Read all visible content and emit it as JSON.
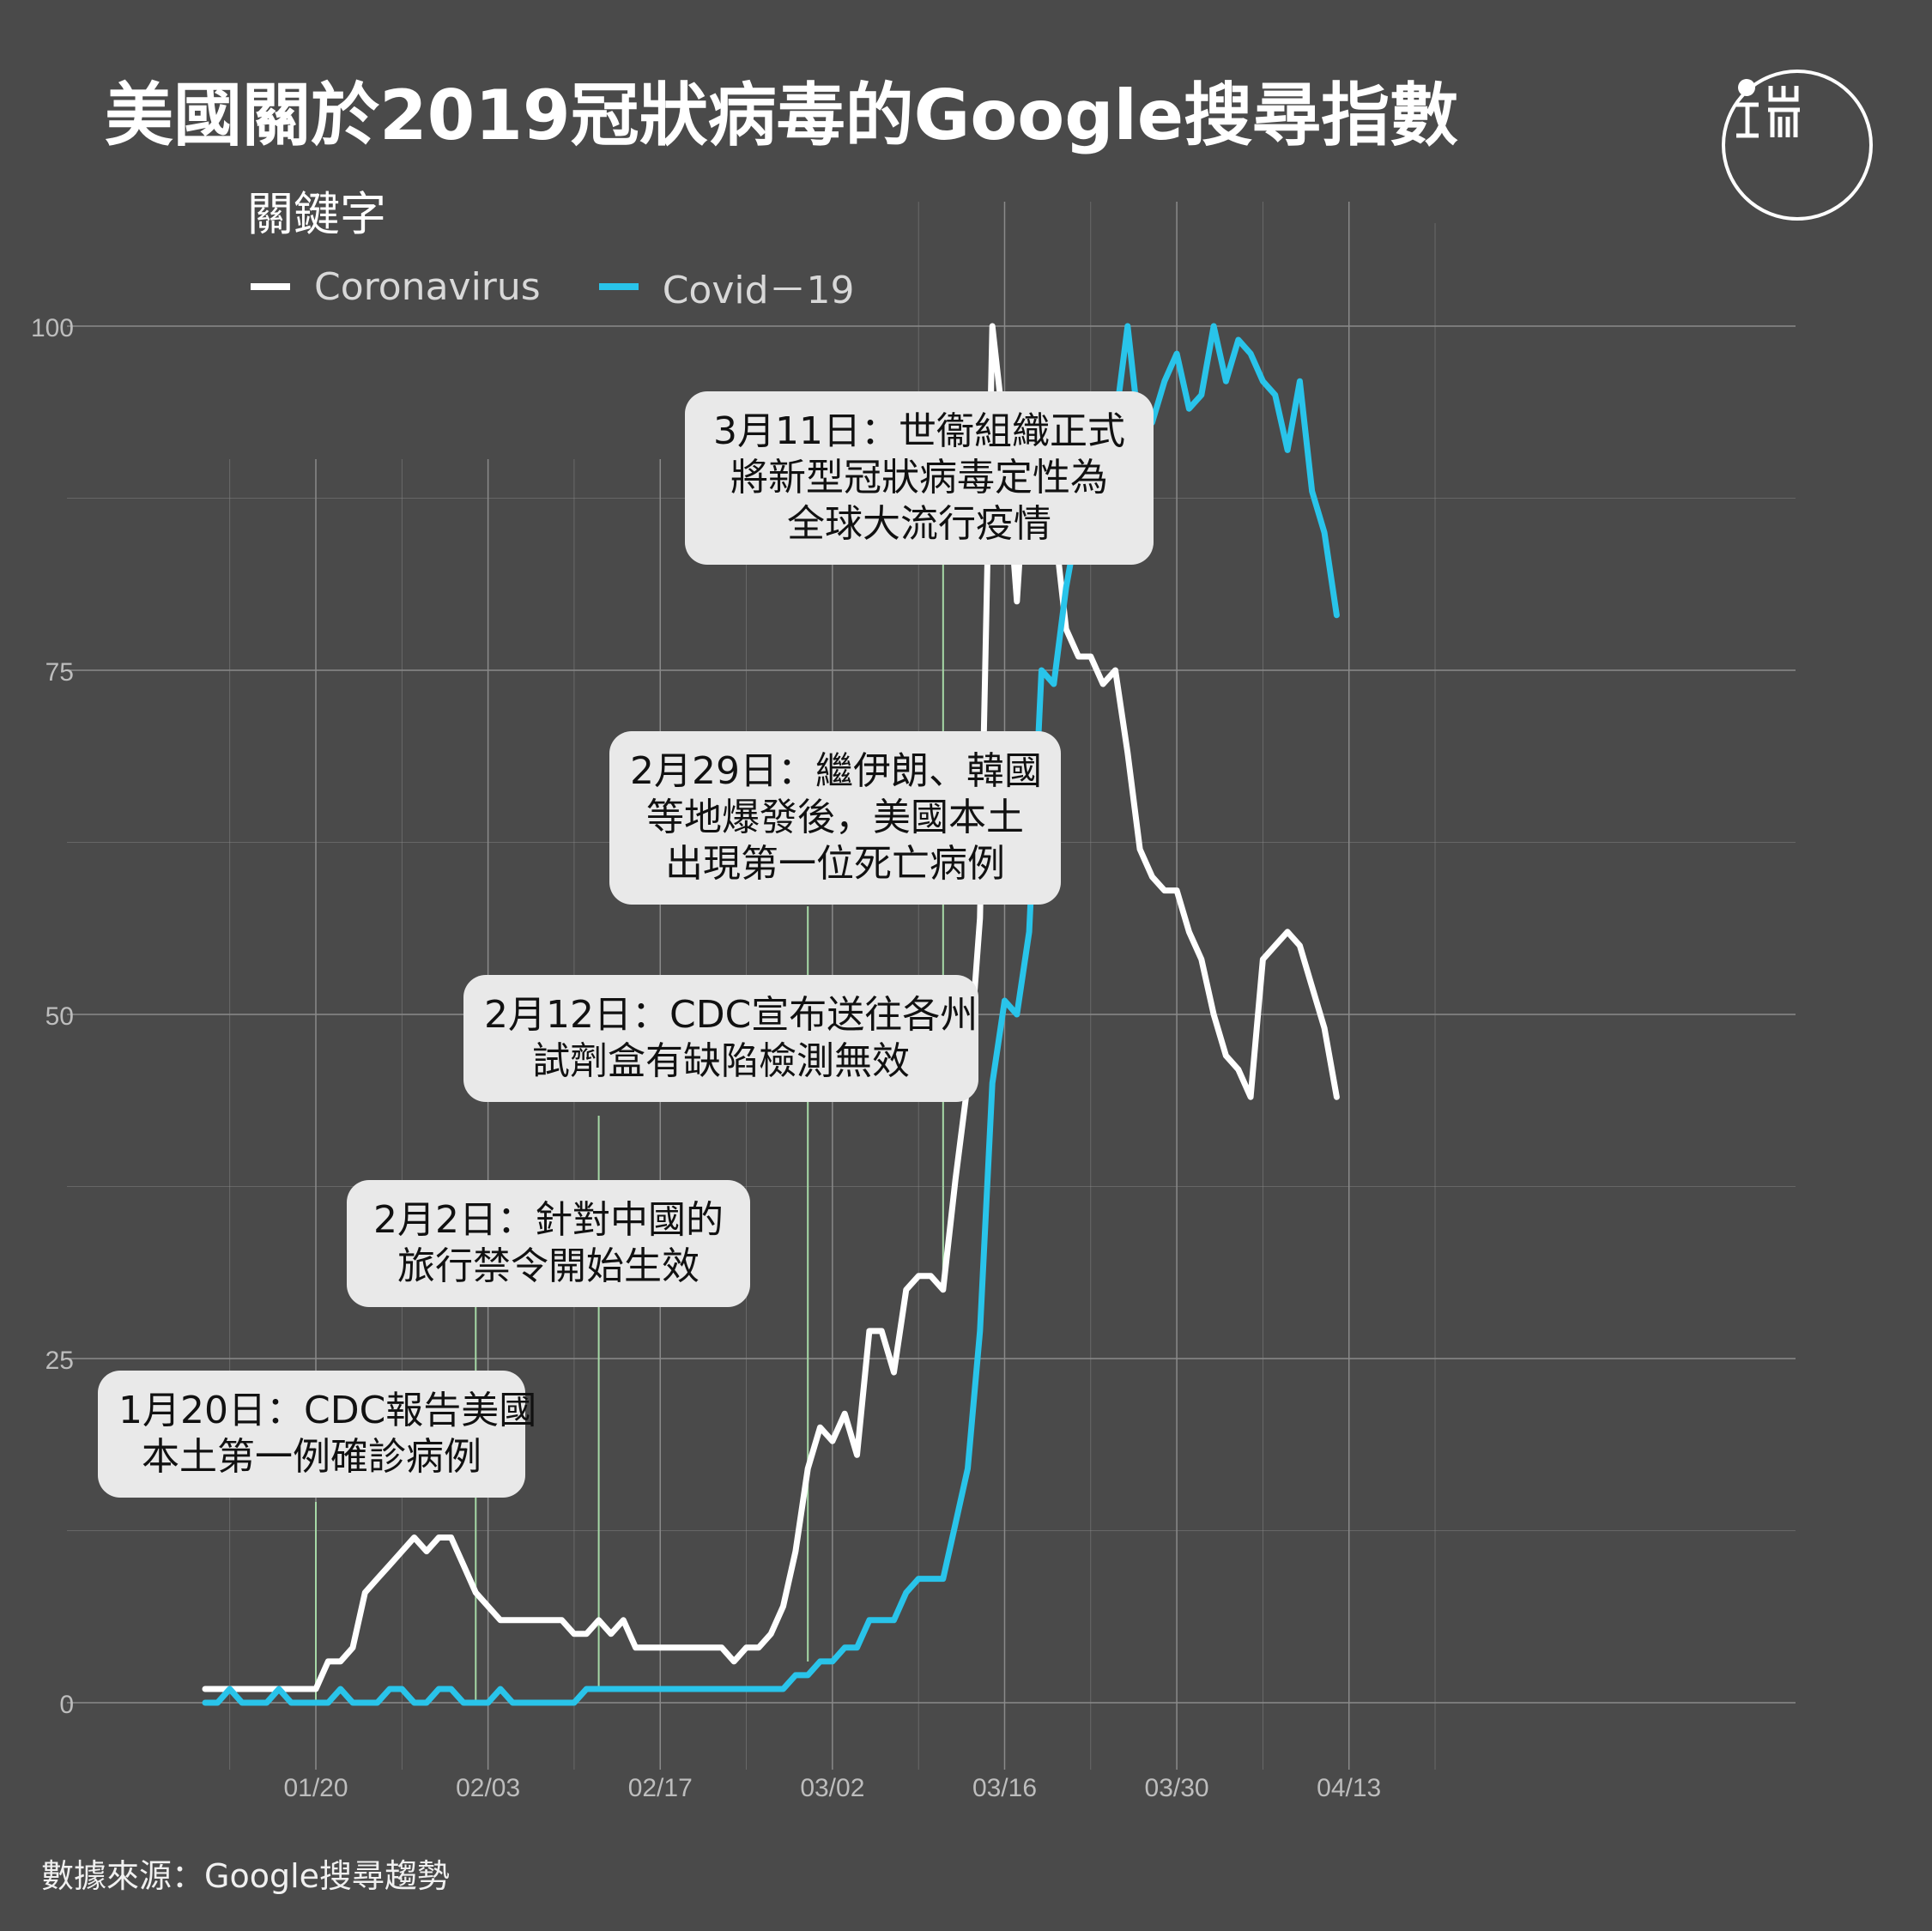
{
  "title": "美國關於2019冠狀病毒的Google搜尋指數",
  "legend": {
    "title": "關鍵字",
    "items": [
      {
        "label": "Coronavirus",
        "color": "#ffffff"
      },
      {
        "label": "Covid－19",
        "color": "#29c4ea"
      }
    ]
  },
  "source": "數據來源：Google搜尋趨勢",
  "colors": {
    "background": "#4a4a4a",
    "grid": "#8a8a8a",
    "annotation_line": "#a6d9a6",
    "annotation_box": "#e9e9e9"
  },
  "logo": {
    "icon": "initium-logo-icon",
    "text": "端"
  },
  "annotations": [
    {
      "date": "2020-01-20",
      "lines": [
        "1月20日：CDC報告美國",
        "本土第一例確診病例"
      ]
    },
    {
      "date": "2020-02-02",
      "lines": [
        "2月2日：針對中國的",
        "旅行禁令開始生效"
      ]
    },
    {
      "date": "2020-02-12",
      "lines": [
        "2月12日：CDC宣布送往各州",
        "試劑盒有缺陷檢測無效"
      ]
    },
    {
      "date": "2020-02-29",
      "lines": [
        "2月29日：繼伊朗、韓國",
        "等地爆發後，美國本土",
        "出現第一位死亡病例"
      ]
    },
    {
      "date": "2020-03-11",
      "lines": [
        "3月11日：世衞組織正式",
        "將新型冠狀病毒定性為",
        "全球大流行疫情"
      ]
    }
  ],
  "chart_data": {
    "type": "line",
    "title": "美國關於2019冠狀病毒的Google搜尋指數",
    "x_start": "2020-01-11",
    "x_step": "1 day",
    "x_ticks": [
      "01/20",
      "02/03",
      "02/17",
      "03/02",
      "03/16",
      "03/30",
      "04/13"
    ],
    "y_ticks": [
      0,
      25,
      50,
      75,
      100
    ],
    "xlim": [
      "2020-01-06",
      "2020-04-20"
    ],
    "ylim": [
      -5,
      105
    ],
    "grid": true,
    "legend_position": "top-left",
    "series": [
      {
        "name": "Coronavirus",
        "color": "#ffffff",
        "values": [
          1,
          1,
          1,
          1,
          1,
          1,
          1,
          1,
          1,
          1,
          3,
          3,
          4,
          8,
          9,
          10,
          11,
          12,
          11,
          12,
          12,
          10,
          8,
          7,
          6,
          6,
          6,
          6,
          6,
          6,
          5,
          5,
          6,
          5,
          6,
          4,
          4,
          4,
          4,
          4,
          4,
          4,
          4,
          3,
          4,
          4,
          5,
          7,
          11,
          17,
          20,
          19,
          21,
          18,
          27,
          27,
          24,
          30,
          31,
          31,
          30,
          38,
          45,
          57,
          100,
          92,
          80,
          94,
          94,
          86,
          78,
          76,
          76,
          74,
          75,
          69,
          62,
          60,
          59,
          59,
          56,
          54,
          50,
          47,
          46,
          44,
          54,
          55,
          56,
          55,
          52,
          49,
          44
        ]
      },
      {
        "name": "Covid－19",
        "color": "#29c4ea",
        "values": [
          0,
          0,
          1,
          0,
          0,
          0,
          1,
          0,
          0,
          0,
          0,
          1,
          0,
          0,
          0,
          1,
          1,
          0,
          0,
          1,
          1,
          0,
          0,
          0,
          1,
          0,
          0,
          0,
          0,
          0,
          0,
          1,
          1,
          1,
          1,
          1,
          1,
          1,
          1,
          1,
          1,
          1,
          1,
          1,
          1,
          1,
          1,
          1,
          2,
          2,
          3,
          3,
          4,
          4,
          6,
          6,
          6,
          8,
          9,
          9,
          9,
          13,
          17,
          27,
          45,
          51,
          50,
          56,
          75,
          74,
          81,
          86,
          89,
          86,
          93,
          100,
          92,
          93,
          96,
          98,
          94,
          95,
          100,
          96,
          99,
          98,
          96,
          95,
          91,
          96,
          88,
          85,
          79
        ]
      }
    ]
  }
}
